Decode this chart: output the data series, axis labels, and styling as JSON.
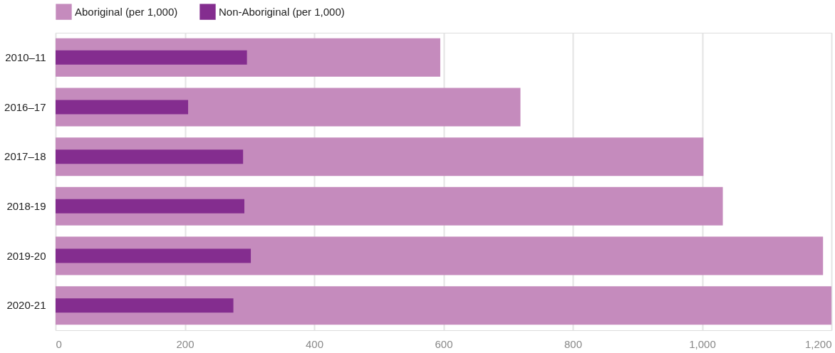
{
  "chart_data": {
    "type": "bar",
    "orientation": "horizontal",
    "categories": [
      "2010–11",
      "2016–17",
      "2017–18",
      "2018-19",
      "2019-20",
      "2020-21"
    ],
    "series": [
      {
        "name": "Aboriginal (per 1,000)",
        "color": "#c58bbd",
        "values": [
          595,
          719,
          1002,
          1032,
          1187,
          1200
        ]
      },
      {
        "name": "Non-Aboriginal (per 1,000)",
        "color": "#842d8f",
        "values": [
          296,
          205,
          290,
          292,
          302,
          275
        ]
      }
    ],
    "xlim": [
      0,
      1200
    ],
    "xticks": [
      0,
      200,
      400,
      600,
      800,
      {
        "value": 1000,
        "label": "1,000"
      },
      {
        "value": 1200,
        "label": "1,200"
      }
    ],
    "grid": "x",
    "legend": "top left"
  }
}
